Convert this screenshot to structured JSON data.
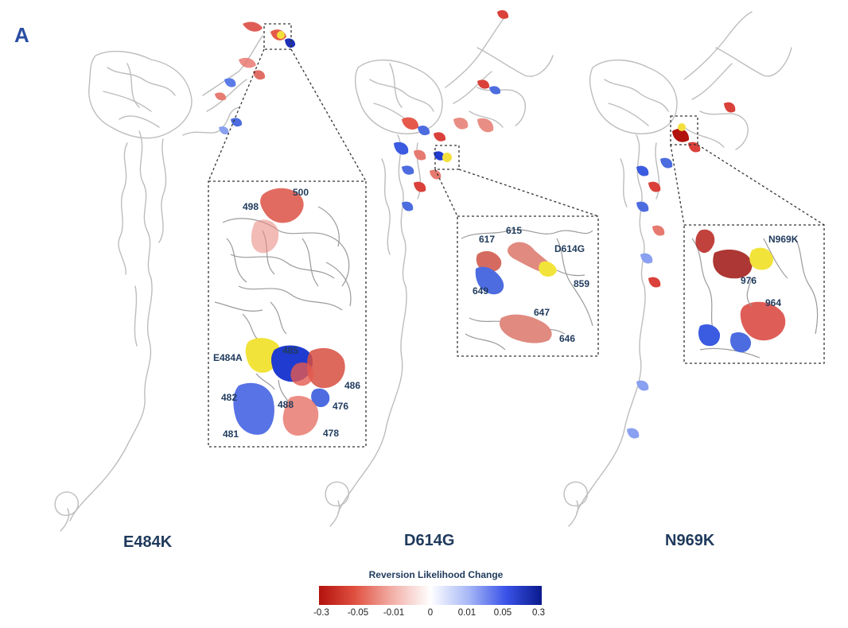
{
  "panel_label": "A",
  "variants": [
    {
      "name": "E484K",
      "residues": [
        "500",
        "498",
        "E484A",
        "485",
        "486",
        "482",
        "488",
        "476",
        "481",
        "478"
      ]
    },
    {
      "name": "D614G",
      "residues": [
        "617",
        "615",
        "D614G",
        "649",
        "859",
        "647",
        "646"
      ]
    },
    {
      "name": "N969K",
      "residues": [
        "N969K",
        "976",
        "964"
      ]
    }
  ],
  "colorbar": {
    "title": "Reversion Likelihood Change",
    "ticks": [
      "-0.3",
      "-0.05",
      "-0.01",
      "0",
      "0.01",
      "0.05",
      "0.3"
    ],
    "gradient": [
      "#b2120d",
      "#e05040",
      "#f2b0a8",
      "#ffffff",
      "#a8b8f6",
      "#3a52e8",
      "#0a1a8c"
    ]
  }
}
